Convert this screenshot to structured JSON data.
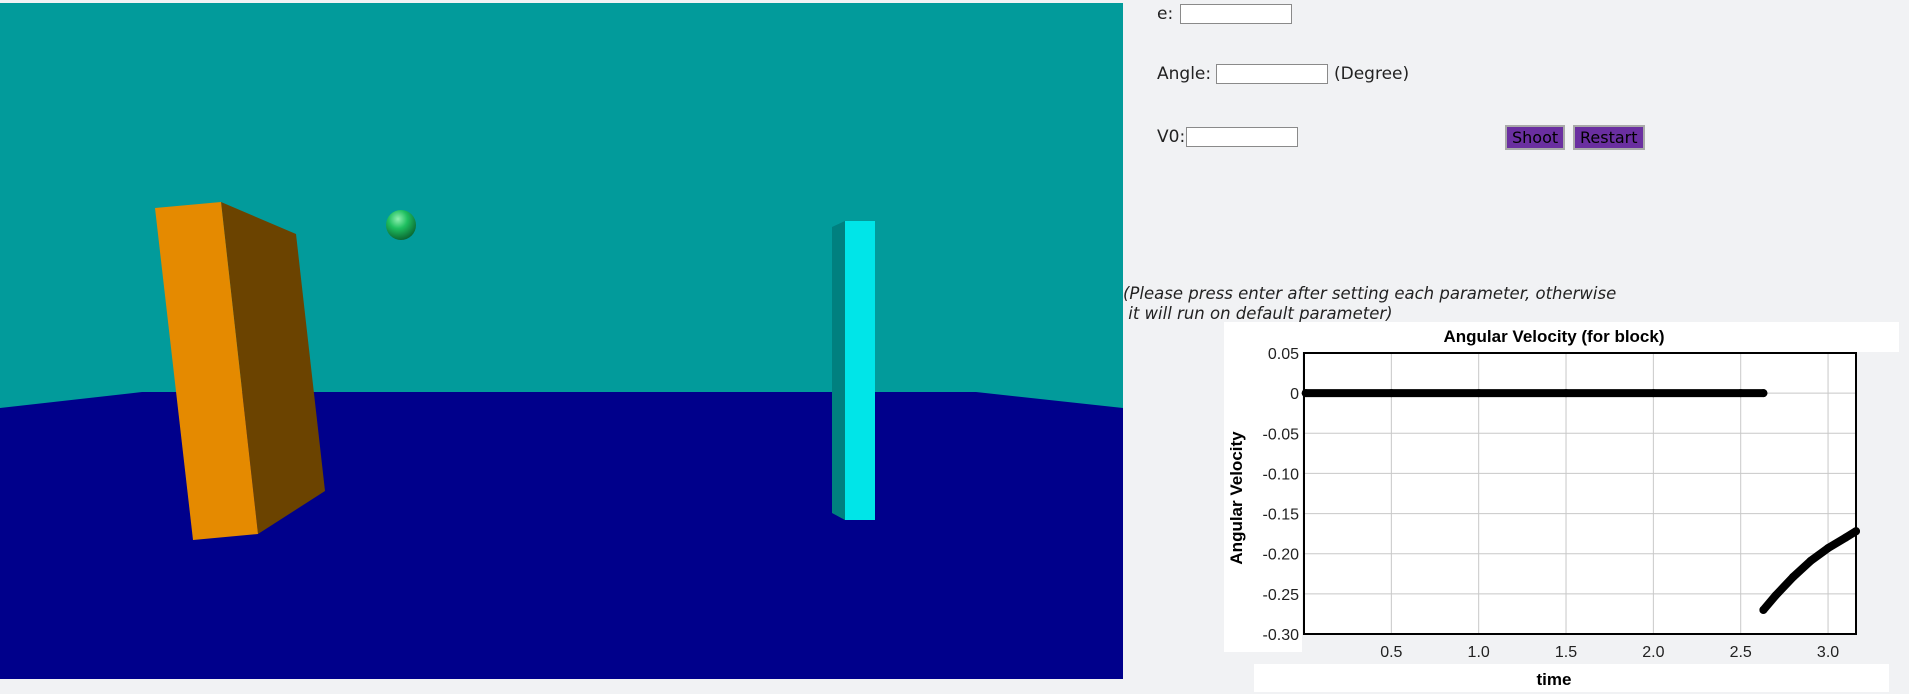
{
  "params": {
    "e_label": "e:",
    "e_value": "",
    "angle_label": "Angle:",
    "angle_value": "",
    "angle_unit": "(Degree)",
    "v0_label": "V0:",
    "v0_value": ""
  },
  "buttons": {
    "shoot_label": "Shoot",
    "restart_label": "Restart",
    "button_color": "#6a2fa0"
  },
  "note": {
    "line1": "(Please press enter after setting each parameter, otherwise",
    "line2": " it will run on default parameter)"
  },
  "scene": {
    "sky_color": "#029b9b",
    "ground_color": "#00008b",
    "block_front_color": "#e58a00",
    "block_side_color": "#6b4300",
    "pillar_color": "#00e5e8",
    "pillar_side_color": "#00807f",
    "ball_color": "#1fc060"
  },
  "chart_data": {
    "type": "scatter",
    "title": "Angular Velocity (for block)",
    "xlabel": "time",
    "ylabel": "Angular Velocity",
    "xlim": [
      0,
      3.16
    ],
    "ylim": [
      -0.3,
      0.05
    ],
    "x_ticks": [
      0.5,
      1.0,
      1.5,
      2.0,
      2.5,
      3.0
    ],
    "x_tick_labels": [
      "0.5",
      "1.0",
      "1.5",
      "2.0",
      "2.5",
      "3.0"
    ],
    "y_ticks": [
      0.05,
      0,
      -0.05,
      -0.1,
      -0.15,
      -0.2,
      -0.25,
      -0.3
    ],
    "y_tick_labels": [
      "0.05",
      "0",
      "-0.05",
      "-0.10",
      "-0.15",
      "-0.20",
      "-0.25",
      "-0.30"
    ],
    "grid": true,
    "series": [
      {
        "color": "#000000",
        "segments": [
          {
            "x": [
              0.01,
              0.5,
              1.0,
              1.5,
              2.0,
              2.5,
              2.63
            ],
            "y": [
              0,
              0,
              0,
              0,
              0,
              0,
              0
            ]
          },
          {
            "x": [
              2.63,
              2.7,
              2.8,
              2.9,
              3.0,
              3.1,
              3.16
            ],
            "y": [
              -0.27,
              -0.252,
              -0.229,
              -0.209,
              -0.193,
              -0.18,
              -0.172
            ]
          }
        ]
      }
    ]
  }
}
